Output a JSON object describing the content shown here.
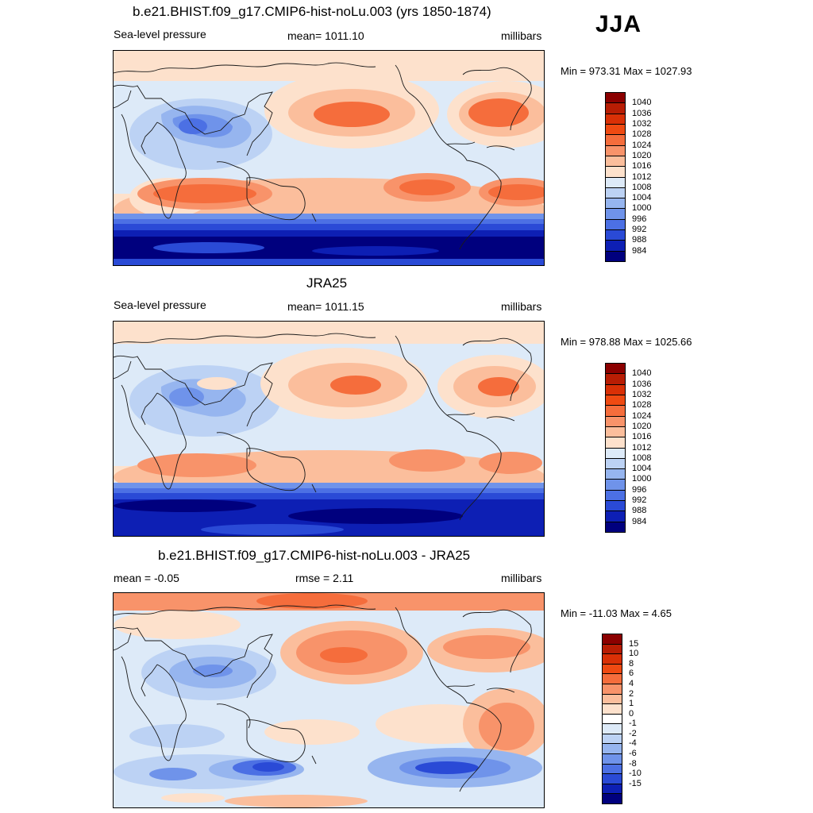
{
  "season": "JJA",
  "panels": [
    {
      "title": "b.e21.BHIST.f09_g17.CMIP6-hist-noLu.003 (yrs 1850-1874)",
      "left_text": "Sea-level pressure",
      "center_text": "mean= 1011.10",
      "right_text": "millibars",
      "minmax": "Min = 973.31 Max = 1027.93",
      "variant": "model"
    },
    {
      "title": "JRA25",
      "left_text": "Sea-level pressure",
      "center_text": "mean= 1011.15",
      "right_text": "millibars",
      "minmax": "Min = 978.88 Max = 1025.66",
      "variant": "obs"
    },
    {
      "title": "b.e21.BHIST.f09_g17.CMIP6-hist-noLu.003 - JRA25",
      "left_text": "mean =  -0.05",
      "center_text": "rmse =    2.11",
      "right_text": "millibars",
      "minmax": "Min = -11.03 Max =   4.65",
      "variant": "diff"
    }
  ],
  "colorbars": {
    "pressure": {
      "labels": [
        "1040",
        "1036",
        "1032",
        "1028",
        "1024",
        "1020",
        "1016",
        "1012",
        "1008",
        "1004",
        "1000",
        "996",
        "992",
        "988",
        "984"
      ],
      "colors": [
        "#8b0000",
        "#b81d04",
        "#d93006",
        "#ef4a12",
        "#f56d3c",
        "#f8936a",
        "#fbbe9c",
        "#fde1cc",
        "#ddeaf8",
        "#bcd2f4",
        "#96b5ef",
        "#6f93ea",
        "#4c70e4",
        "#2a4ad6",
        "#0d1fb4",
        "#00007e"
      ]
    },
    "difference": {
      "labels": [
        "15",
        "10",
        "8",
        "6",
        "4",
        "2",
        "1",
        "0",
        "-1",
        "-2",
        "-4",
        "-6",
        "-8",
        "-10",
        "-15"
      ],
      "colors": [
        "#8b0000",
        "#b81d04",
        "#d93006",
        "#ef4a12",
        "#f56d3c",
        "#f8936a",
        "#fbbe9c",
        "#fde1cc",
        "#ffffff",
        "#ddeaf8",
        "#bcd2f4",
        "#96b5ef",
        "#6f93ea",
        "#4c70e4",
        "#2a4ad6",
        "#0d1fb4",
        "#00007e"
      ]
    }
  }
}
